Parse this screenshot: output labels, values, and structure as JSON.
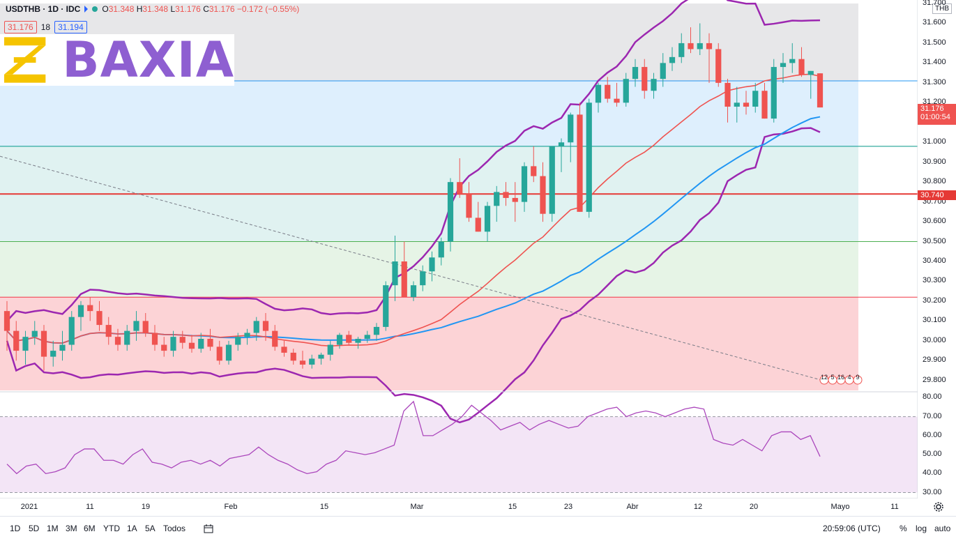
{
  "legend": {
    "symbol": "USDTHB · 1D · IDC",
    "open_label": "O",
    "open": "31.348",
    "high_label": "H",
    "high": "31.348",
    "low_label": "L",
    "low": "31.176",
    "close_label": "C",
    "close": "31.176",
    "change": "−0.172 (−0.55%)"
  },
  "quote": {
    "bid": "31.176",
    "spread": "18",
    "ask": "31.194"
  },
  "logo": {
    "text": "BAXIA"
  },
  "currency": "THB",
  "price_axis": [
    "31.700",
    "31.600",
    "31.500",
    "31.400",
    "31.300",
    "31.200",
    "31.100",
    "31.000",
    "30.900",
    "30.800",
    "30.700",
    "30.600",
    "30.500",
    "30.400",
    "30.300",
    "30.200",
    "30.100",
    "30.000",
    "29.900",
    "29.800"
  ],
  "rsi_axis": [
    "80.00",
    "70.00",
    "60.00",
    "50.00",
    "40.00",
    "30.00"
  ],
  "price_tags": {
    "last": "31.176",
    "countdown": "01:00:54",
    "level": "30.740"
  },
  "time_axis": [
    "2021",
    "11",
    "19",
    "Feb",
    "15",
    "Mar",
    "15",
    "23",
    "Abr",
    "12",
    "20",
    "Mayo",
    "11"
  ],
  "events": [
    "12",
    "5",
    "16",
    "4",
    "9"
  ],
  "timeframes": [
    "1D",
    "5D",
    "1M",
    "3M",
    "6M",
    "YTD",
    "1A",
    "5A",
    "Todos"
  ],
  "clock": "20:59:06 (UTC)",
  "scale_options": [
    "%",
    "log",
    "auto"
  ],
  "colors": {
    "up": "#26a69a",
    "down": "#ef5350",
    "bb": "#9c27b0",
    "ma_fast": "#ef5350",
    "ma_slow": "#2196f3",
    "rsi": "#ab47bc",
    "ichimoku_a": "#4caf50",
    "ichimoku_b": "#f4511e"
  },
  "chart_data": {
    "type": "candlestick",
    "ylim": [
      29.75,
      31.7
    ],
    "candles": [
      [
        30.15,
        30.2,
        29.95,
        30.05
      ],
      [
        30.05,
        30.1,
        29.9,
        29.95
      ],
      [
        29.95,
        30.05,
        29.88,
        30.02
      ],
      [
        30.02,
        30.1,
        29.98,
        30.05
      ],
      [
        30.05,
        30.08,
        29.85,
        29.92
      ],
      [
        29.92,
        30.0,
        29.87,
        29.95
      ],
      [
        29.95,
        30.05,
        29.9,
        29.98
      ],
      [
        29.98,
        30.15,
        29.95,
        30.12
      ],
      [
        30.12,
        30.2,
        30.05,
        30.18
      ],
      [
        30.18,
        30.22,
        30.1,
        30.15
      ],
      [
        30.15,
        30.2,
        30.05,
        30.08
      ],
      [
        30.08,
        30.12,
        29.98,
        30.02
      ],
      [
        30.02,
        30.06,
        29.95,
        29.98
      ],
      [
        29.98,
        30.08,
        29.95,
        30.05
      ],
      [
        30.05,
        30.15,
        30.0,
        30.1
      ],
      [
        30.1,
        30.14,
        30.02,
        30.04
      ],
      [
        30.04,
        30.08,
        29.95,
        29.98
      ],
      [
        29.98,
        30.02,
        29.92,
        29.95
      ],
      [
        29.95,
        30.05,
        29.92,
        30.02
      ],
      [
        30.02,
        30.05,
        29.96,
        29.99
      ],
      [
        29.99,
        30.03,
        29.94,
        29.96
      ],
      [
        29.96,
        30.04,
        29.94,
        30.01
      ],
      [
        30.01,
        30.06,
        29.95,
        29.97
      ],
      [
        29.97,
        30.0,
        29.88,
        29.9
      ],
      [
        29.9,
        30.0,
        29.88,
        29.98
      ],
      [
        29.98,
        30.04,
        29.95,
        30.02
      ],
      [
        30.02,
        30.06,
        29.98,
        30.04
      ],
      [
        30.04,
        30.12,
        30.0,
        30.1
      ],
      [
        30.1,
        30.14,
        30.0,
        30.05
      ],
      [
        30.05,
        30.08,
        29.95,
        29.97
      ],
      [
        29.97,
        30.0,
        29.92,
        29.94
      ],
      [
        29.94,
        29.96,
        29.88,
        29.9
      ],
      [
        29.9,
        29.95,
        29.86,
        29.88
      ],
      [
        29.88,
        29.93,
        29.86,
        29.91
      ],
      [
        29.91,
        29.94,
        29.88,
        29.93
      ],
      [
        29.93,
        30.0,
        29.9,
        29.98
      ],
      [
        29.98,
        30.04,
        29.96,
        30.03
      ],
      [
        30.03,
        30.05,
        29.98,
        29.99
      ],
      [
        29.99,
        30.02,
        29.96,
        30.01
      ],
      [
        30.01,
        30.05,
        29.99,
        30.03
      ],
      [
        30.03,
        30.09,
        30.0,
        30.07
      ],
      [
        30.07,
        30.3,
        30.05,
        30.28
      ],
      [
        30.28,
        30.53,
        30.2,
        30.4
      ],
      [
        30.4,
        30.5,
        30.22,
        30.22
      ],
      [
        30.22,
        30.3,
        30.2,
        30.28
      ],
      [
        30.28,
        30.38,
        30.25,
        30.35
      ],
      [
        30.35,
        30.45,
        30.3,
        30.42
      ],
      [
        30.42,
        30.52,
        30.38,
        30.5
      ],
      [
        30.5,
        30.82,
        30.45,
        30.8
      ],
      [
        30.8,
        30.92,
        30.72,
        30.74
      ],
      [
        30.74,
        30.8,
        30.6,
        30.62
      ],
      [
        30.62,
        30.7,
        30.55,
        30.55
      ],
      [
        30.55,
        30.7,
        30.5,
        30.68
      ],
      [
        30.68,
        30.78,
        30.6,
        30.75
      ],
      [
        30.75,
        30.8,
        30.68,
        30.72
      ],
      [
        30.72,
        30.8,
        30.6,
        30.7
      ],
      [
        30.7,
        30.9,
        30.65,
        30.88
      ],
      [
        30.88,
        30.98,
        30.8,
        30.83
      ],
      [
        30.83,
        30.9,
        30.6,
        30.64
      ],
      [
        30.64,
        30.98,
        30.6,
        30.98
      ],
      [
        30.98,
        31.02,
        30.85,
        31.0
      ],
      [
        31.0,
        31.15,
        30.9,
        31.14
      ],
      [
        31.14,
        31.2,
        30.65,
        30.65
      ],
      [
        30.65,
        31.22,
        30.62,
        31.2
      ],
      [
        31.2,
        31.3,
        31.15,
        31.29
      ],
      [
        31.29,
        31.33,
        31.2,
        31.22
      ],
      [
        31.22,
        31.3,
        31.18,
        31.2
      ],
      [
        31.2,
        31.35,
        31.18,
        31.32
      ],
      [
        31.32,
        31.42,
        31.28,
        31.38
      ],
      [
        31.38,
        31.42,
        31.22,
        31.26
      ],
      [
        31.26,
        31.35,
        31.22,
        31.32
      ],
      [
        31.32,
        31.45,
        31.28,
        31.4
      ],
      [
        31.4,
        31.48,
        31.36,
        31.43
      ],
      [
        31.43,
        31.55,
        31.4,
        31.5
      ],
      [
        31.5,
        31.58,
        31.45,
        31.47
      ],
      [
        31.47,
        31.6,
        31.44,
        31.5
      ],
      [
        31.5,
        31.55,
        31.3,
        31.47
      ],
      [
        31.47,
        31.5,
        31.28,
        31.3
      ],
      [
        31.3,
        31.32,
        31.1,
        31.18
      ],
      [
        31.18,
        31.28,
        31.1,
        31.2
      ],
      [
        31.2,
        31.26,
        31.14,
        31.18
      ],
      [
        31.18,
        31.3,
        31.15,
        31.26
      ],
      [
        31.26,
        31.3,
        31.12,
        31.12
      ],
      [
        31.12,
        31.42,
        31.1,
        31.38
      ],
      [
        31.38,
        31.45,
        31.3,
        31.4
      ],
      [
        31.4,
        31.5,
        31.35,
        31.42
      ],
      [
        31.42,
        31.48,
        31.33,
        31.34
      ],
      [
        31.34,
        31.36,
        31.22,
        31.36
      ],
      [
        31.348,
        31.348,
        31.176,
        31.176
      ]
    ],
    "rsi": [
      45,
      40,
      44,
      45,
      40,
      41,
      43,
      50,
      53,
      53,
      47,
      47,
      45,
      50,
      53,
      46,
      45,
      43,
      46,
      47,
      45,
      47,
      44,
      48,
      49,
      50,
      54,
      50,
      47,
      45,
      42,
      40,
      41,
      45,
      47,
      52,
      51,
      50,
      51,
      53,
      55,
      73,
      78,
      60,
      60,
      63,
      66,
      70,
      76,
      72,
      68,
      63,
      65,
      67,
      63,
      66,
      68,
      66,
      64,
      65,
      70,
      72,
      74,
      75,
      70,
      72,
      73,
      72,
      70,
      72,
      74,
      75,
      74,
      58,
      56,
      55,
      58,
      55,
      52,
      60,
      62,
      62,
      58,
      60,
      49
    ],
    "rsi_ylim": [
      28,
      82
    ],
    "bands": [
      29.75,
      30.22,
      30.5,
      30.98,
      31.31
    ],
    "level": 30.74
  }
}
